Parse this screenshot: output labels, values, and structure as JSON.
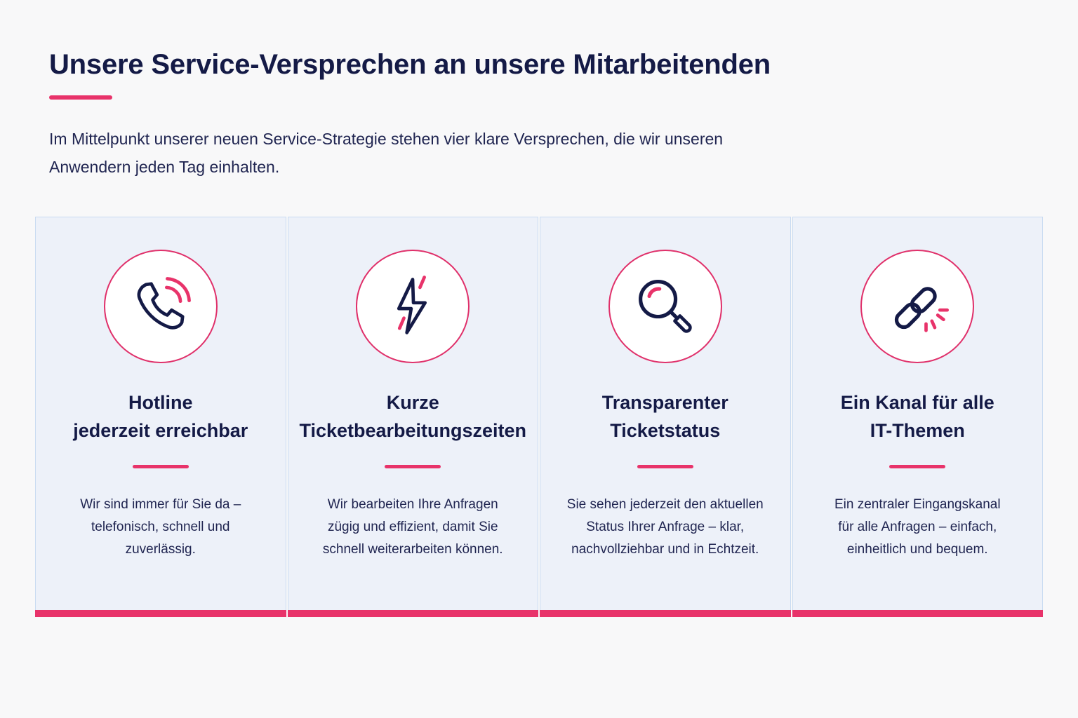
{
  "header": {
    "title": "Unsere Service-Versprechen an unsere Mitarbeitenden",
    "intro": "Im Mittelpunkt unserer neuen Service-Strategie stehen vier klare Versprechen, die wir unseren Anwendern jeden Tag einhalten."
  },
  "colors": {
    "navy": "#141a46",
    "accent": "#e8336a",
    "card_background": "#edf1f9",
    "card_border": "#c9dbf1"
  },
  "cards": [
    {
      "icon": "phone-icon",
      "title_lines": [
        "Hotline",
        "jederzeit erreichbar"
      ],
      "text_lines": [
        "Wir sind immer für Sie da –",
        "telefonisch, schnell und",
        "zuverlässig."
      ]
    },
    {
      "icon": "lightning-icon",
      "title_lines": [
        "Kurze",
        "Ticketbearbeitungszeiten"
      ],
      "text_lines": [
        "Wir bearbeiten Ihre Anfragen",
        "zügig und effizient, damit Sie",
        "schnell weiterarbeiten können."
      ]
    },
    {
      "icon": "magnifier-icon",
      "title_lines": [
        "Transparenter",
        "Ticketstatus"
      ],
      "text_lines": [
        "Sie sehen jederzeit den aktuellen",
        "Status Ihrer Anfrage – klar,",
        "nachvollziehbar und in Echtzeit."
      ]
    },
    {
      "icon": "link-icon",
      "title_lines": [
        "Ein Kanal für alle",
        "IT-Themen"
      ],
      "text_lines": [
        "Ein zentraler Eingangskanal",
        "für alle Anfragen – einfach,",
        "einheitlich und bequem."
      ]
    }
  ]
}
